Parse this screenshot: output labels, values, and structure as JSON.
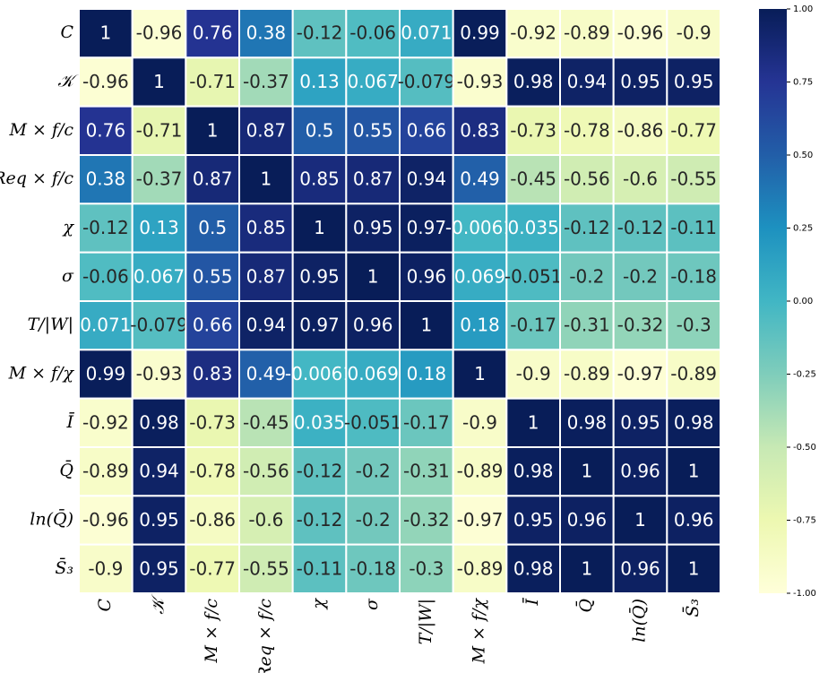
{
  "chart_data": {
    "type": "heatmap",
    "colormap": "YlGnBu",
    "x_categories": [
      "C",
      "𝒦",
      "M × f/c",
      "Req × f/c",
      "χ",
      "σ",
      "T/|W|",
      "M × f/χ",
      "Ī",
      "Q̄",
      "ln(Q̄)",
      "S̄₃"
    ],
    "y_categories": [
      "C",
      "𝒦",
      "M × f/c",
      "Req × f/c",
      "χ",
      "σ",
      "T/|W|",
      "M × f/χ",
      "Ī",
      "Q̄",
      "ln(Q̄)",
      "S̄₃"
    ],
    "values": [
      [
        1,
        -0.96,
        0.76,
        0.38,
        -0.12,
        -0.06,
        0.071,
        0.99,
        -0.92,
        -0.89,
        -0.96,
        -0.9
      ],
      [
        -0.96,
        1,
        -0.71,
        -0.37,
        0.13,
        0.067,
        -0.079,
        -0.93,
        0.98,
        0.94,
        0.95,
        0.95
      ],
      [
        0.76,
        -0.71,
        1,
        0.87,
        0.5,
        0.55,
        0.66,
        0.83,
        -0.73,
        -0.78,
        -0.86,
        -0.77
      ],
      [
        0.38,
        -0.37,
        0.87,
        1,
        0.85,
        0.87,
        0.94,
        0.49,
        -0.45,
        -0.56,
        -0.6,
        -0.55
      ],
      [
        -0.12,
        0.13,
        0.5,
        0.85,
        1,
        0.95,
        0.97,
        -0.0061,
        0.035,
        -0.12,
        -0.12,
        -0.11
      ],
      [
        -0.06,
        0.067,
        0.55,
        0.87,
        0.95,
        1,
        0.96,
        0.069,
        -0.051,
        -0.2,
        -0.2,
        -0.18
      ],
      [
        0.071,
        -0.079,
        0.66,
        0.94,
        0.97,
        0.96,
        1,
        0.18,
        -0.17,
        -0.31,
        -0.32,
        -0.3
      ],
      [
        0.99,
        -0.93,
        0.83,
        0.49,
        -0.0061,
        0.069,
        0.18,
        1,
        -0.9,
        -0.89,
        -0.97,
        -0.89
      ],
      [
        -0.92,
        0.98,
        -0.73,
        -0.45,
        0.035,
        -0.051,
        -0.17,
        -0.9,
        1,
        0.98,
        0.95,
        0.98
      ],
      [
        -0.89,
        0.94,
        -0.78,
        -0.56,
        -0.12,
        -0.2,
        -0.31,
        -0.89,
        0.98,
        1,
        0.96,
        1
      ],
      [
        -0.96,
        0.95,
        -0.86,
        -0.6,
        -0.12,
        -0.2,
        -0.32,
        -0.97,
        0.95,
        0.96,
        1,
        0.96
      ],
      [
        -0.9,
        0.95,
        -0.77,
        -0.55,
        -0.11,
        -0.18,
        -0.3,
        -0.89,
        0.98,
        1,
        0.96,
        1
      ]
    ],
    "zlim": [
      -1,
      1
    ],
    "zticks": [
      {
        "value": 1,
        "label": "1.00"
      },
      {
        "value": 0.75,
        "label": "0.75"
      },
      {
        "value": 0.5,
        "label": "0.50"
      },
      {
        "value": 0.25,
        "label": "0.25"
      },
      {
        "value": 0,
        "label": "0.00"
      },
      {
        "value": -0.25,
        "label": "-0.25"
      },
      {
        "value": -0.5,
        "label": "-0.50"
      },
      {
        "value": -0.75,
        "label": "-0.75"
      },
      {
        "value": -1,
        "label": "-1.00"
      }
    ]
  }
}
